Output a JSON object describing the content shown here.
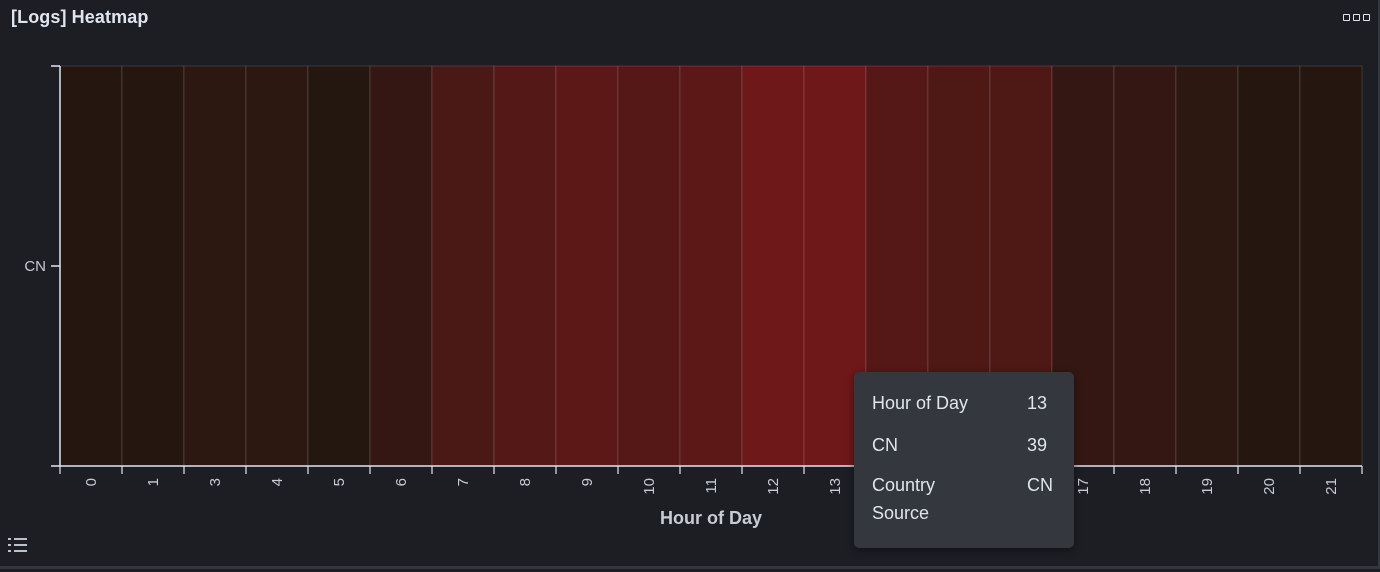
{
  "panel": {
    "title": "[Logs] Heatmap",
    "options_icon": "more-options-icon",
    "legend_icon": "legend-list-icon"
  },
  "chart_data": {
    "type": "heatmap",
    "x": [
      "0",
      "1",
      "3",
      "4",
      "5",
      "6",
      "7",
      "8",
      "9",
      "10",
      "11",
      "12",
      "13",
      "",
      "",
      "",
      "17",
      "18",
      "19",
      "20",
      "21"
    ],
    "y": [
      "CN"
    ],
    "values": [
      [
        5,
        5,
        8,
        8,
        4,
        12,
        22,
        27,
        30,
        28,
        30,
        39,
        39,
        28,
        24,
        24,
        12,
        12,
        8,
        5,
        5
      ]
    ],
    "xlabel": "Hour of Day",
    "ylabel": "",
    "colors": {
      "low": "#231710",
      "high": "#6e1819"
    }
  },
  "tooltip": {
    "rows": [
      {
        "label": "Hour of Day",
        "value": "13"
      },
      {
        "label": "CN",
        "value": "39"
      },
      {
        "label": "Country Source",
        "value": "CN"
      }
    ]
  }
}
